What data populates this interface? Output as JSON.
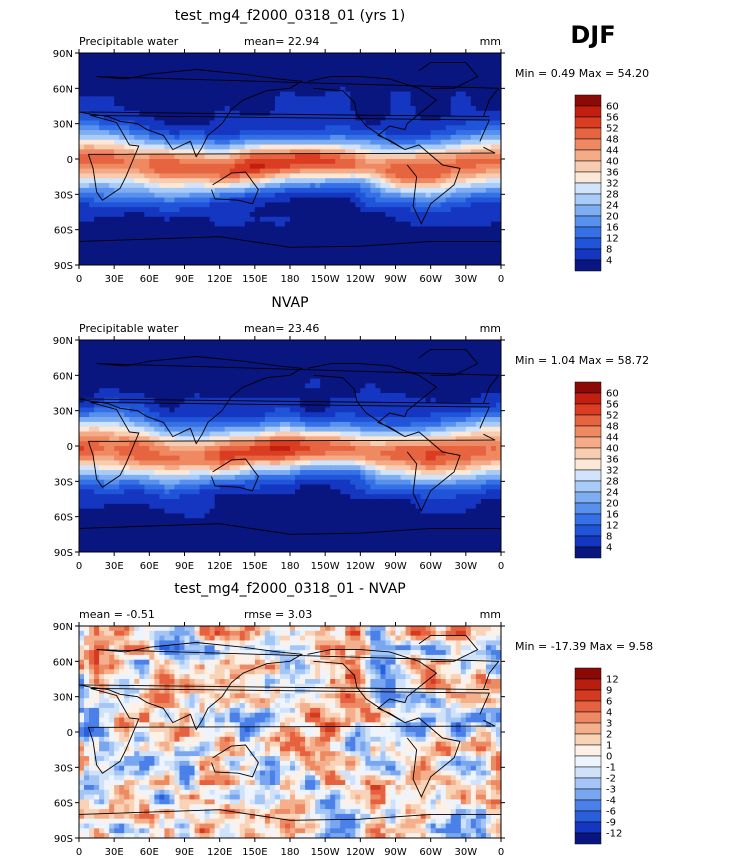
{
  "season": "DJF",
  "colors": {
    "land": "#000000",
    "grid_label": "#000000"
  },
  "axes": {
    "lat_labels": [
      "90N",
      "60N",
      "30N",
      "0",
      "30S",
      "60S",
      "90S"
    ],
    "lon_labels": [
      "0",
      "30E",
      "60E",
      "90E",
      "120E",
      "150E",
      "180",
      "150W",
      "120W",
      "90W",
      "60W",
      "30W",
      "0"
    ]
  },
  "chart_data": [
    {
      "type": "heatmap",
      "title": "test_mg4_f2000_0318_01 (yrs 1)",
      "left_label": "Precipitable water",
      "center_label": "mean=  22.94",
      "units": "mm",
      "stats": "Min =   0.49  Max =   54.20",
      "min": 0.49,
      "max": 54.2,
      "mean": 22.94,
      "field": "model",
      "colorbar": {
        "levels": [
          "60",
          "56",
          "52",
          "48",
          "44",
          "40",
          "36",
          "32",
          "28",
          "24",
          "20",
          "16",
          "12",
          "8",
          "4"
        ],
        "colors": [
          "#0a1680",
          "#1536c0",
          "#2055d9",
          "#3570e6",
          "#5890ed",
          "#7fadf2",
          "#a8cbf7",
          "#d2e4fb",
          "#fbe8d6",
          "#f8ccb0",
          "#f4ab88",
          "#ef8962",
          "#e76440",
          "#da3d22",
          "#c21f10",
          "#8c0a05"
        ]
      }
    },
    {
      "type": "heatmap",
      "title": "NVAP",
      "left_label": "Precipitable water",
      "center_label": "mean=  23.46",
      "units": "mm",
      "stats": "Min =   1.04  Max =   58.72",
      "min": 1.04,
      "max": 58.72,
      "mean": 23.46,
      "field": "obs",
      "colorbar": {
        "levels": [
          "60",
          "56",
          "52",
          "48",
          "44",
          "40",
          "36",
          "32",
          "28",
          "24",
          "20",
          "16",
          "12",
          "8",
          "4"
        ],
        "colors": [
          "#0a1680",
          "#1536c0",
          "#2055d9",
          "#3570e6",
          "#5890ed",
          "#7fadf2",
          "#a8cbf7",
          "#d2e4fb",
          "#fbe8d6",
          "#f8ccb0",
          "#f4ab88",
          "#ef8962",
          "#e76440",
          "#da3d22",
          "#c21f10",
          "#8c0a05"
        ]
      }
    },
    {
      "type": "heatmap",
      "title": "test_mg4_f2000_0318_01 - NVAP",
      "left_label": "mean =   -0.51",
      "center_label": "rmse =    3.03",
      "units": "mm",
      "stats": "Min = -17.39  Max =    9.58",
      "min": -17.39,
      "max": 9.58,
      "mean": -0.51,
      "rmse": 3.03,
      "field": "diff",
      "colorbar": {
        "levels": [
          "12",
          "9",
          "6",
          "4",
          "3",
          "2",
          "1",
          "0",
          "-1",
          "-2",
          "-3",
          "-4",
          "-6",
          "-9",
          "-12"
        ],
        "colors": [
          "#0a1680",
          "#1536c0",
          "#2a5fdc",
          "#4a80e8",
          "#78a6f0",
          "#a4c6f6",
          "#d0e2fa",
          "#eef4fd",
          "#fdf1e7",
          "#f9d3b8",
          "#f4b08d",
          "#ee8a63",
          "#e6613f",
          "#d43a20",
          "#b81d0e",
          "#8c0a05"
        ]
      }
    }
  ]
}
